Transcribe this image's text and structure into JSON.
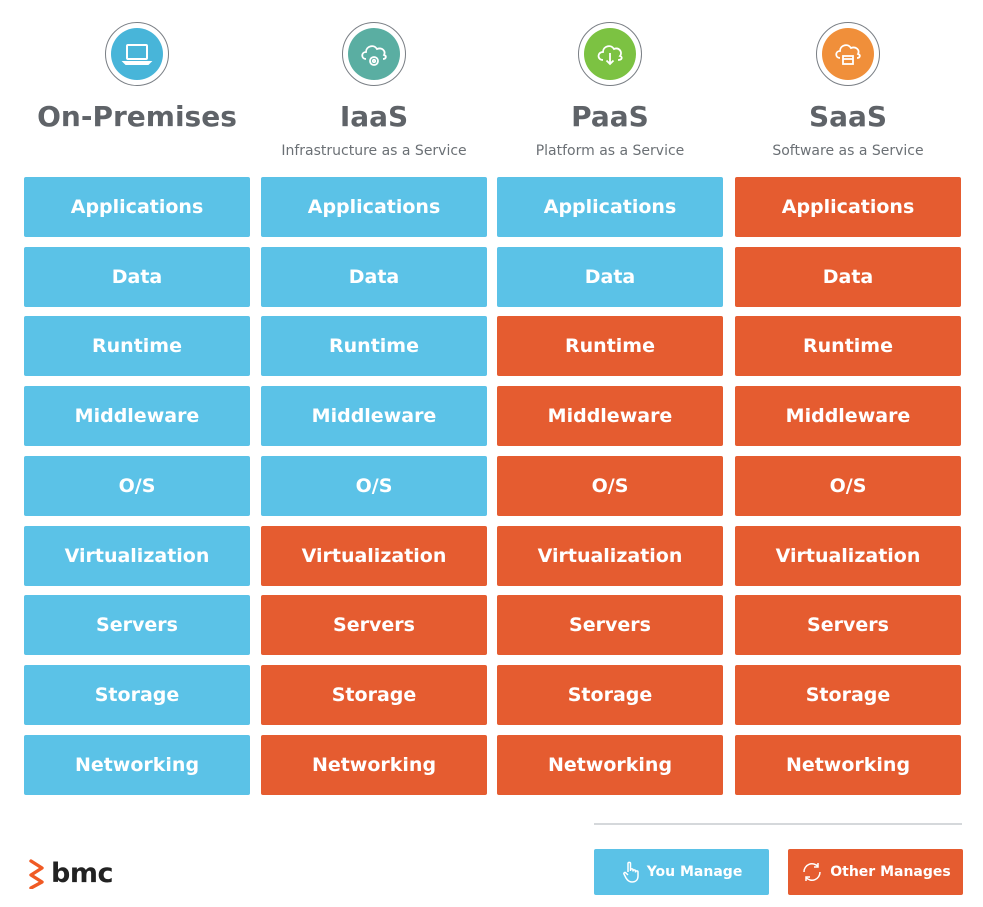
{
  "colors": {
    "you_manage": "#5bc2e7",
    "other_manages": "#e55c30",
    "heading_text": "#5f6368"
  },
  "columns": [
    {
      "title": "On-Premises",
      "subtitle": "",
      "icon": "laptop-icon",
      "icon_color": "#48b5d9",
      "rows": [
        {
          "label": "Applications",
          "managed_by": "you"
        },
        {
          "label": "Data",
          "managed_by": "you"
        },
        {
          "label": "Runtime",
          "managed_by": "you"
        },
        {
          "label": "Middleware",
          "managed_by": "you"
        },
        {
          "label": "O/S",
          "managed_by": "you"
        },
        {
          "label": "Virtualization",
          "managed_by": "you"
        },
        {
          "label": "Servers",
          "managed_by": "you"
        },
        {
          "label": "Storage",
          "managed_by": "you"
        },
        {
          "label": "Networking",
          "managed_by": "you"
        }
      ]
    },
    {
      "title": "IaaS",
      "subtitle": "Infrastructure as a Service",
      "icon": "cloud-gear-icon",
      "icon_color": "#5aaea2",
      "rows": [
        {
          "label": "Applications",
          "managed_by": "you"
        },
        {
          "label": "Data",
          "managed_by": "you"
        },
        {
          "label": "Runtime",
          "managed_by": "you"
        },
        {
          "label": "Middleware",
          "managed_by": "you"
        },
        {
          "label": "O/S",
          "managed_by": "you"
        },
        {
          "label": "Virtualization",
          "managed_by": "other"
        },
        {
          "label": "Servers",
          "managed_by": "other"
        },
        {
          "label": "Storage",
          "managed_by": "other"
        },
        {
          "label": "Networking",
          "managed_by": "other"
        }
      ]
    },
    {
      "title": "PaaS",
      "subtitle": "Platform as a Service",
      "icon": "cloud-download-icon",
      "icon_color": "#7cc242",
      "rows": [
        {
          "label": "Applications",
          "managed_by": "you"
        },
        {
          "label": "Data",
          "managed_by": "you"
        },
        {
          "label": "Runtime",
          "managed_by": "other"
        },
        {
          "label": "Middleware",
          "managed_by": "other"
        },
        {
          "label": "O/S",
          "managed_by": "other"
        },
        {
          "label": "Virtualization",
          "managed_by": "other"
        },
        {
          "label": "Servers",
          "managed_by": "other"
        },
        {
          "label": "Storage",
          "managed_by": "other"
        },
        {
          "label": "Networking",
          "managed_by": "other"
        }
      ]
    },
    {
      "title": "SaaS",
      "subtitle": "Software as a Service",
      "icon": "cloud-box-icon",
      "icon_color": "#f08f3a",
      "rows": [
        {
          "label": "Applications",
          "managed_by": "other"
        },
        {
          "label": "Data",
          "managed_by": "other"
        },
        {
          "label": "Runtime",
          "managed_by": "other"
        },
        {
          "label": "Middleware",
          "managed_by": "other"
        },
        {
          "label": "O/S",
          "managed_by": "other"
        },
        {
          "label": "Virtualization",
          "managed_by": "other"
        },
        {
          "label": "Servers",
          "managed_by": "other"
        },
        {
          "label": "Storage",
          "managed_by": "other"
        },
        {
          "label": "Networking",
          "managed_by": "other"
        }
      ]
    }
  ],
  "legend": {
    "you_manage_label": "You Manage",
    "other_manages_label": "Other Manages"
  },
  "brand": {
    "logo_text": "bmc"
  }
}
